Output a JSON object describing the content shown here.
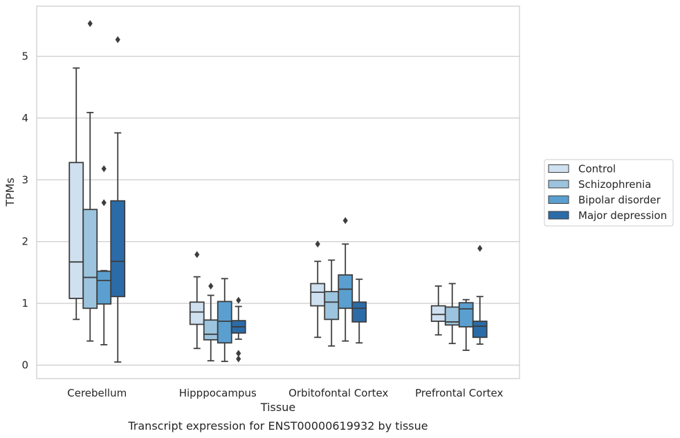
{
  "chart_data": {
    "type": "box",
    "caption": "Transcript expression for ENST00000619932 by tissue",
    "xlabel": "Tissue",
    "ylabel": "TPMs",
    "ylim": [
      -0.2,
      5.81
    ],
    "yticks": [
      0,
      1,
      2,
      3,
      4,
      5
    ],
    "grid": "horizontal",
    "legend_position": "right",
    "categories": [
      "Cerebellum",
      "Hipppocampus",
      "Orbitofontal Cortex",
      "Prefrontal Cortex"
    ],
    "series": [
      {
        "name": "Control",
        "color": "#cfe0f0",
        "boxes": [
          {
            "whisker_low": 0.74,
            "q1": 1.08,
            "median": 1.67,
            "q3": 3.28,
            "whisker_high": 4.81,
            "outliers": []
          },
          {
            "whisker_low": 0.27,
            "q1": 0.66,
            "median": 0.86,
            "q3": 1.02,
            "whisker_high": 1.43,
            "outliers": [
              1.79
            ]
          },
          {
            "whisker_low": 0.45,
            "q1": 0.96,
            "median": 1.18,
            "q3": 1.32,
            "whisker_high": 1.68,
            "outliers": [
              1.96
            ]
          },
          {
            "whisker_low": 0.49,
            "q1": 0.71,
            "median": 0.82,
            "q3": 0.96,
            "whisker_high": 1.28,
            "outliers": []
          }
        ]
      },
      {
        "name": "Schizophrenia",
        "color": "#9cc4de",
        "boxes": [
          {
            "whisker_low": 0.39,
            "q1": 0.92,
            "median": 1.42,
            "q3": 2.52,
            "whisker_high": 4.09,
            "outliers": [
              5.53
            ]
          },
          {
            "whisker_low": 0.07,
            "q1": 0.41,
            "median": 0.5,
            "q3": 0.73,
            "whisker_high": 1.13,
            "outliers": [
              1.28
            ]
          },
          {
            "whisker_low": 0.31,
            "q1": 0.74,
            "median": 1.02,
            "q3": 1.19,
            "whisker_high": 1.7,
            "outliers": []
          },
          {
            "whisker_low": 0.35,
            "q1": 0.65,
            "median": 0.7,
            "q3": 0.94,
            "whisker_high": 1.32,
            "outliers": []
          }
        ]
      },
      {
        "name": "Bipolar disorder",
        "color": "#5a9fcf",
        "boxes": [
          {
            "whisker_low": 0.33,
            "q1": 0.99,
            "median": 1.37,
            "q3": 1.52,
            "whisker_high": 1.53,
            "outliers": [
              2.63,
              3.18
            ]
          },
          {
            "whisker_low": 0.06,
            "q1": 0.36,
            "median": 0.71,
            "q3": 1.03,
            "whisker_high": 1.4,
            "outliers": []
          },
          {
            "whisker_low": 0.39,
            "q1": 0.92,
            "median": 1.23,
            "q3": 1.46,
            "whisker_high": 1.96,
            "outliers": [
              2.34
            ]
          },
          {
            "whisker_low": 0.24,
            "q1": 0.62,
            "median": 0.91,
            "q3": 1.01,
            "whisker_high": 1.06,
            "outliers": []
          }
        ]
      },
      {
        "name": "Major depression",
        "color": "#2b6ca8",
        "boxes": [
          {
            "whisker_low": 0.05,
            "q1": 1.11,
            "median": 1.68,
            "q3": 2.66,
            "whisker_high": 3.76,
            "outliers": [
              5.27
            ]
          },
          {
            "whisker_low": 0.42,
            "q1": 0.52,
            "median": 0.62,
            "q3": 0.72,
            "whisker_high": 0.95,
            "outliers": [
              0.1,
              0.19,
              1.05
            ]
          },
          {
            "whisker_low": 0.36,
            "q1": 0.7,
            "median": 0.92,
            "q3": 1.02,
            "whisker_high": 1.39,
            "outliers": []
          },
          {
            "whisker_low": 0.34,
            "q1": 0.45,
            "median": 0.63,
            "q3": 0.71,
            "whisker_high": 1.11,
            "outliers": [
              1.89
            ]
          }
        ]
      }
    ]
  }
}
